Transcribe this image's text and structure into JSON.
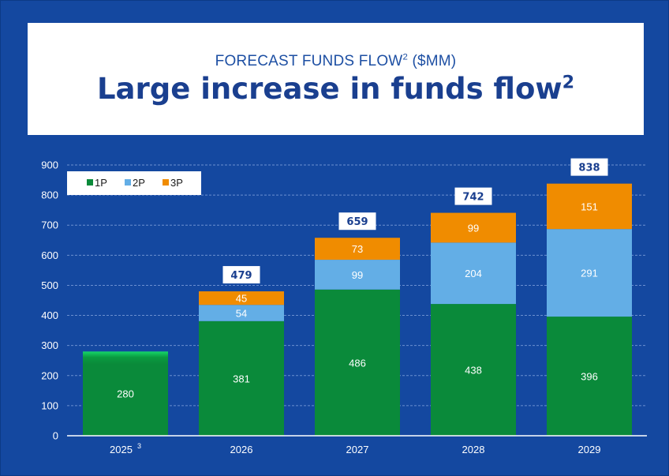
{
  "header": {
    "subtitle": "FORECAST FUNDS FLOW",
    "subtitle_sup": "2",
    "subtitle_unit": " ($MM)",
    "headline": "Large increase in funds flow",
    "headline_sup": "2"
  },
  "colors": {
    "background": "#1448a0",
    "1P": "#0a8a3a",
    "2P": "#63aee6",
    "3P": "#f08c00",
    "grid": "#6b8fd0"
  },
  "chart_data": {
    "type": "bar",
    "stacked": true,
    "categories": [
      "2025",
      "2026",
      "2027",
      "2028",
      "2029"
    ],
    "category_notes": [
      "3",
      "",
      "",
      "",
      ""
    ],
    "series": [
      {
        "name": "1P",
        "values": [
          280,
          381,
          486,
          438,
          396
        ]
      },
      {
        "name": "2P",
        "values": [
          null,
          54,
          99,
          204,
          291
        ]
      },
      {
        "name": "3P",
        "values": [
          null,
          45,
          73,
          99,
          151
        ]
      }
    ],
    "totals": [
      null,
      479,
      659,
      742,
      838
    ],
    "ylim": [
      0,
      900
    ],
    "yticks": [
      0,
      100,
      200,
      300,
      400,
      500,
      600,
      700,
      800,
      900
    ],
    "grid": true,
    "legend_position": "top-left"
  }
}
